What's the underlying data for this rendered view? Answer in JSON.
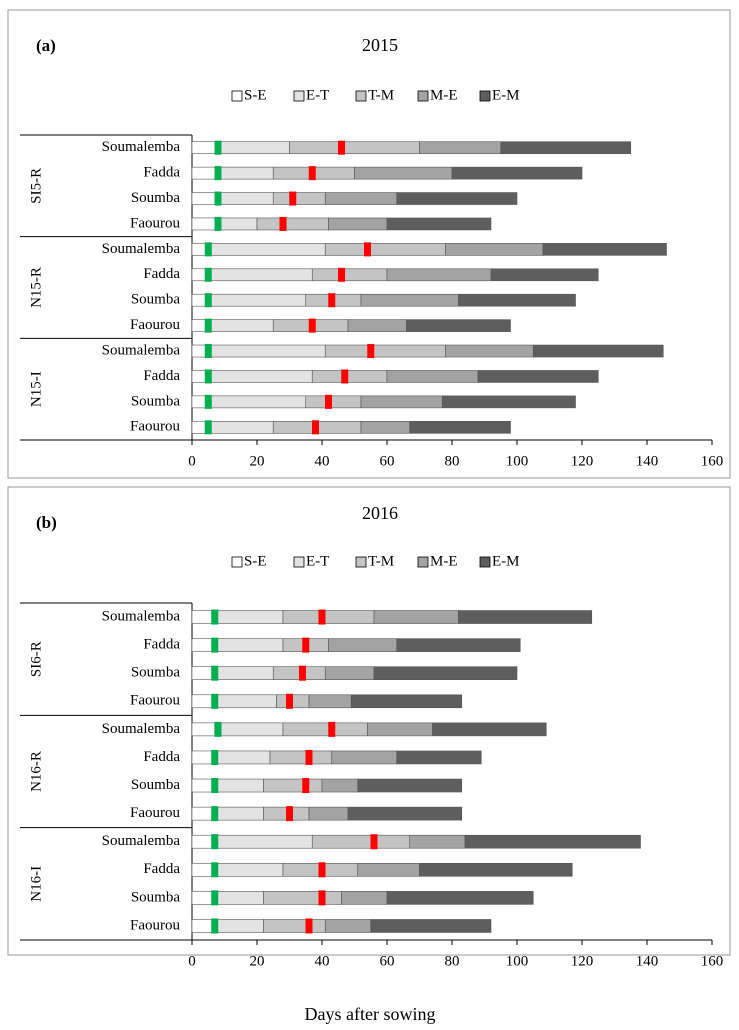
{
  "chart_data": [
    {
      "type": "bar",
      "orientation": "horizontal",
      "stacked": true,
      "panel_label": "(a)",
      "title": "2015",
      "groups": [
        {
          "label": "SI5-R",
          "categories": [
            "Soumalemba",
            "Fadda",
            "Soumba",
            "Faourou"
          ]
        },
        {
          "label": "N15-R",
          "categories": [
            "Soumalemba",
            "Fadda",
            "Soumba",
            "Faourou"
          ]
        },
        {
          "label": "N15-I",
          "categories": [
            "Soumalemba",
            "Fadda",
            "Soumba",
            "Faourou"
          ]
        }
      ],
      "series": [
        {
          "name": "S-E",
          "color": "#ffffff",
          "values": [
            8,
            8,
            8,
            8,
            5,
            5,
            5,
            5,
            5,
            5,
            5,
            5
          ]
        },
        {
          "name": "E-T",
          "color": "#e3e3e3",
          "values": [
            22,
            17,
            17,
            12,
            36,
            32,
            30,
            20,
            36,
            32,
            30,
            20
          ]
        },
        {
          "name": "T-M",
          "color": "#c4c4c4",
          "values": [
            40,
            25,
            16,
            22,
            37,
            23,
            17,
            23,
            37,
            23,
            17,
            27
          ]
        },
        {
          "name": "M-E",
          "color": "#a3a3a3",
          "values": [
            25,
            30,
            22,
            18,
            30,
            32,
            30,
            18,
            27,
            28,
            25,
            15
          ]
        },
        {
          "name": "E-M",
          "color": "#5e5e5e",
          "values": [
            40,
            40,
            37,
            32,
            38,
            33,
            36,
            32,
            40,
            37,
            41,
            31
          ]
        }
      ],
      "markers": [
        {
          "color": "#00b050",
          "values": [
            8,
            8,
            8,
            8,
            5,
            5,
            5,
            5,
            5,
            5,
            5,
            5
          ]
        },
        {
          "color": "#ff0000",
          "values": [
            46,
            37,
            31,
            28,
            54,
            46,
            43,
            37,
            55,
            47,
            42,
            38
          ]
        }
      ],
      "xlim": [
        0,
        160
      ],
      "xticks": [
        0,
        20,
        40,
        60,
        80,
        100,
        120,
        140,
        160
      ]
    },
    {
      "type": "bar",
      "orientation": "horizontal",
      "stacked": true,
      "panel_label": "(b)",
      "title": "2016",
      "groups": [
        {
          "label": "SI6-R",
          "categories": [
            "Soumalemba",
            "Fadda",
            "Soumba",
            "Faourou"
          ]
        },
        {
          "label": "N16-R",
          "categories": [
            "Soumalemba",
            "Fadda",
            "Soumba",
            "Faourou"
          ]
        },
        {
          "label": "N16-I",
          "categories": [
            "Soumalemba",
            "Fadda",
            "Soumba",
            "Faourou"
          ]
        }
      ],
      "series": [
        {
          "name": "S-E",
          "color": "#ffffff",
          "values": [
            7,
            7,
            7,
            7,
            7,
            7,
            7,
            7,
            7,
            7,
            7,
            7
          ]
        },
        {
          "name": "E-T",
          "color": "#e3e3e3",
          "values": [
            21,
            21,
            18,
            19,
            21,
            17,
            15,
            15,
            30,
            21,
            15,
            15
          ]
        },
        {
          "name": "T-M",
          "color": "#c4c4c4",
          "values": [
            28,
            14,
            16,
            10,
            26,
            19,
            18,
            14,
            30,
            23,
            24,
            19
          ]
        },
        {
          "name": "M-E",
          "color": "#a3a3a3",
          "values": [
            26,
            21,
            15,
            13,
            20,
            20,
            11,
            12,
            17,
            19,
            14,
            14
          ]
        },
        {
          "name": "E-M",
          "color": "#5e5e5e",
          "values": [
            41,
            38,
            44,
            34,
            35,
            26,
            32,
            35,
            54,
            47,
            45,
            37
          ]
        }
      ],
      "markers": [
        {
          "color": "#00b050",
          "values": [
            7,
            7,
            7,
            7,
            8,
            7,
            7,
            7,
            7,
            7,
            7,
            7
          ]
        },
        {
          "color": "#ff0000",
          "values": [
            40,
            35,
            34,
            30,
            43,
            36,
            35,
            30,
            56,
            40,
            40,
            36
          ]
        }
      ],
      "xlim": [
        0,
        160
      ],
      "xticks": [
        0,
        20,
        40,
        60,
        80,
        100,
        120,
        140,
        160
      ]
    }
  ],
  "x_label": "Days after sowing"
}
